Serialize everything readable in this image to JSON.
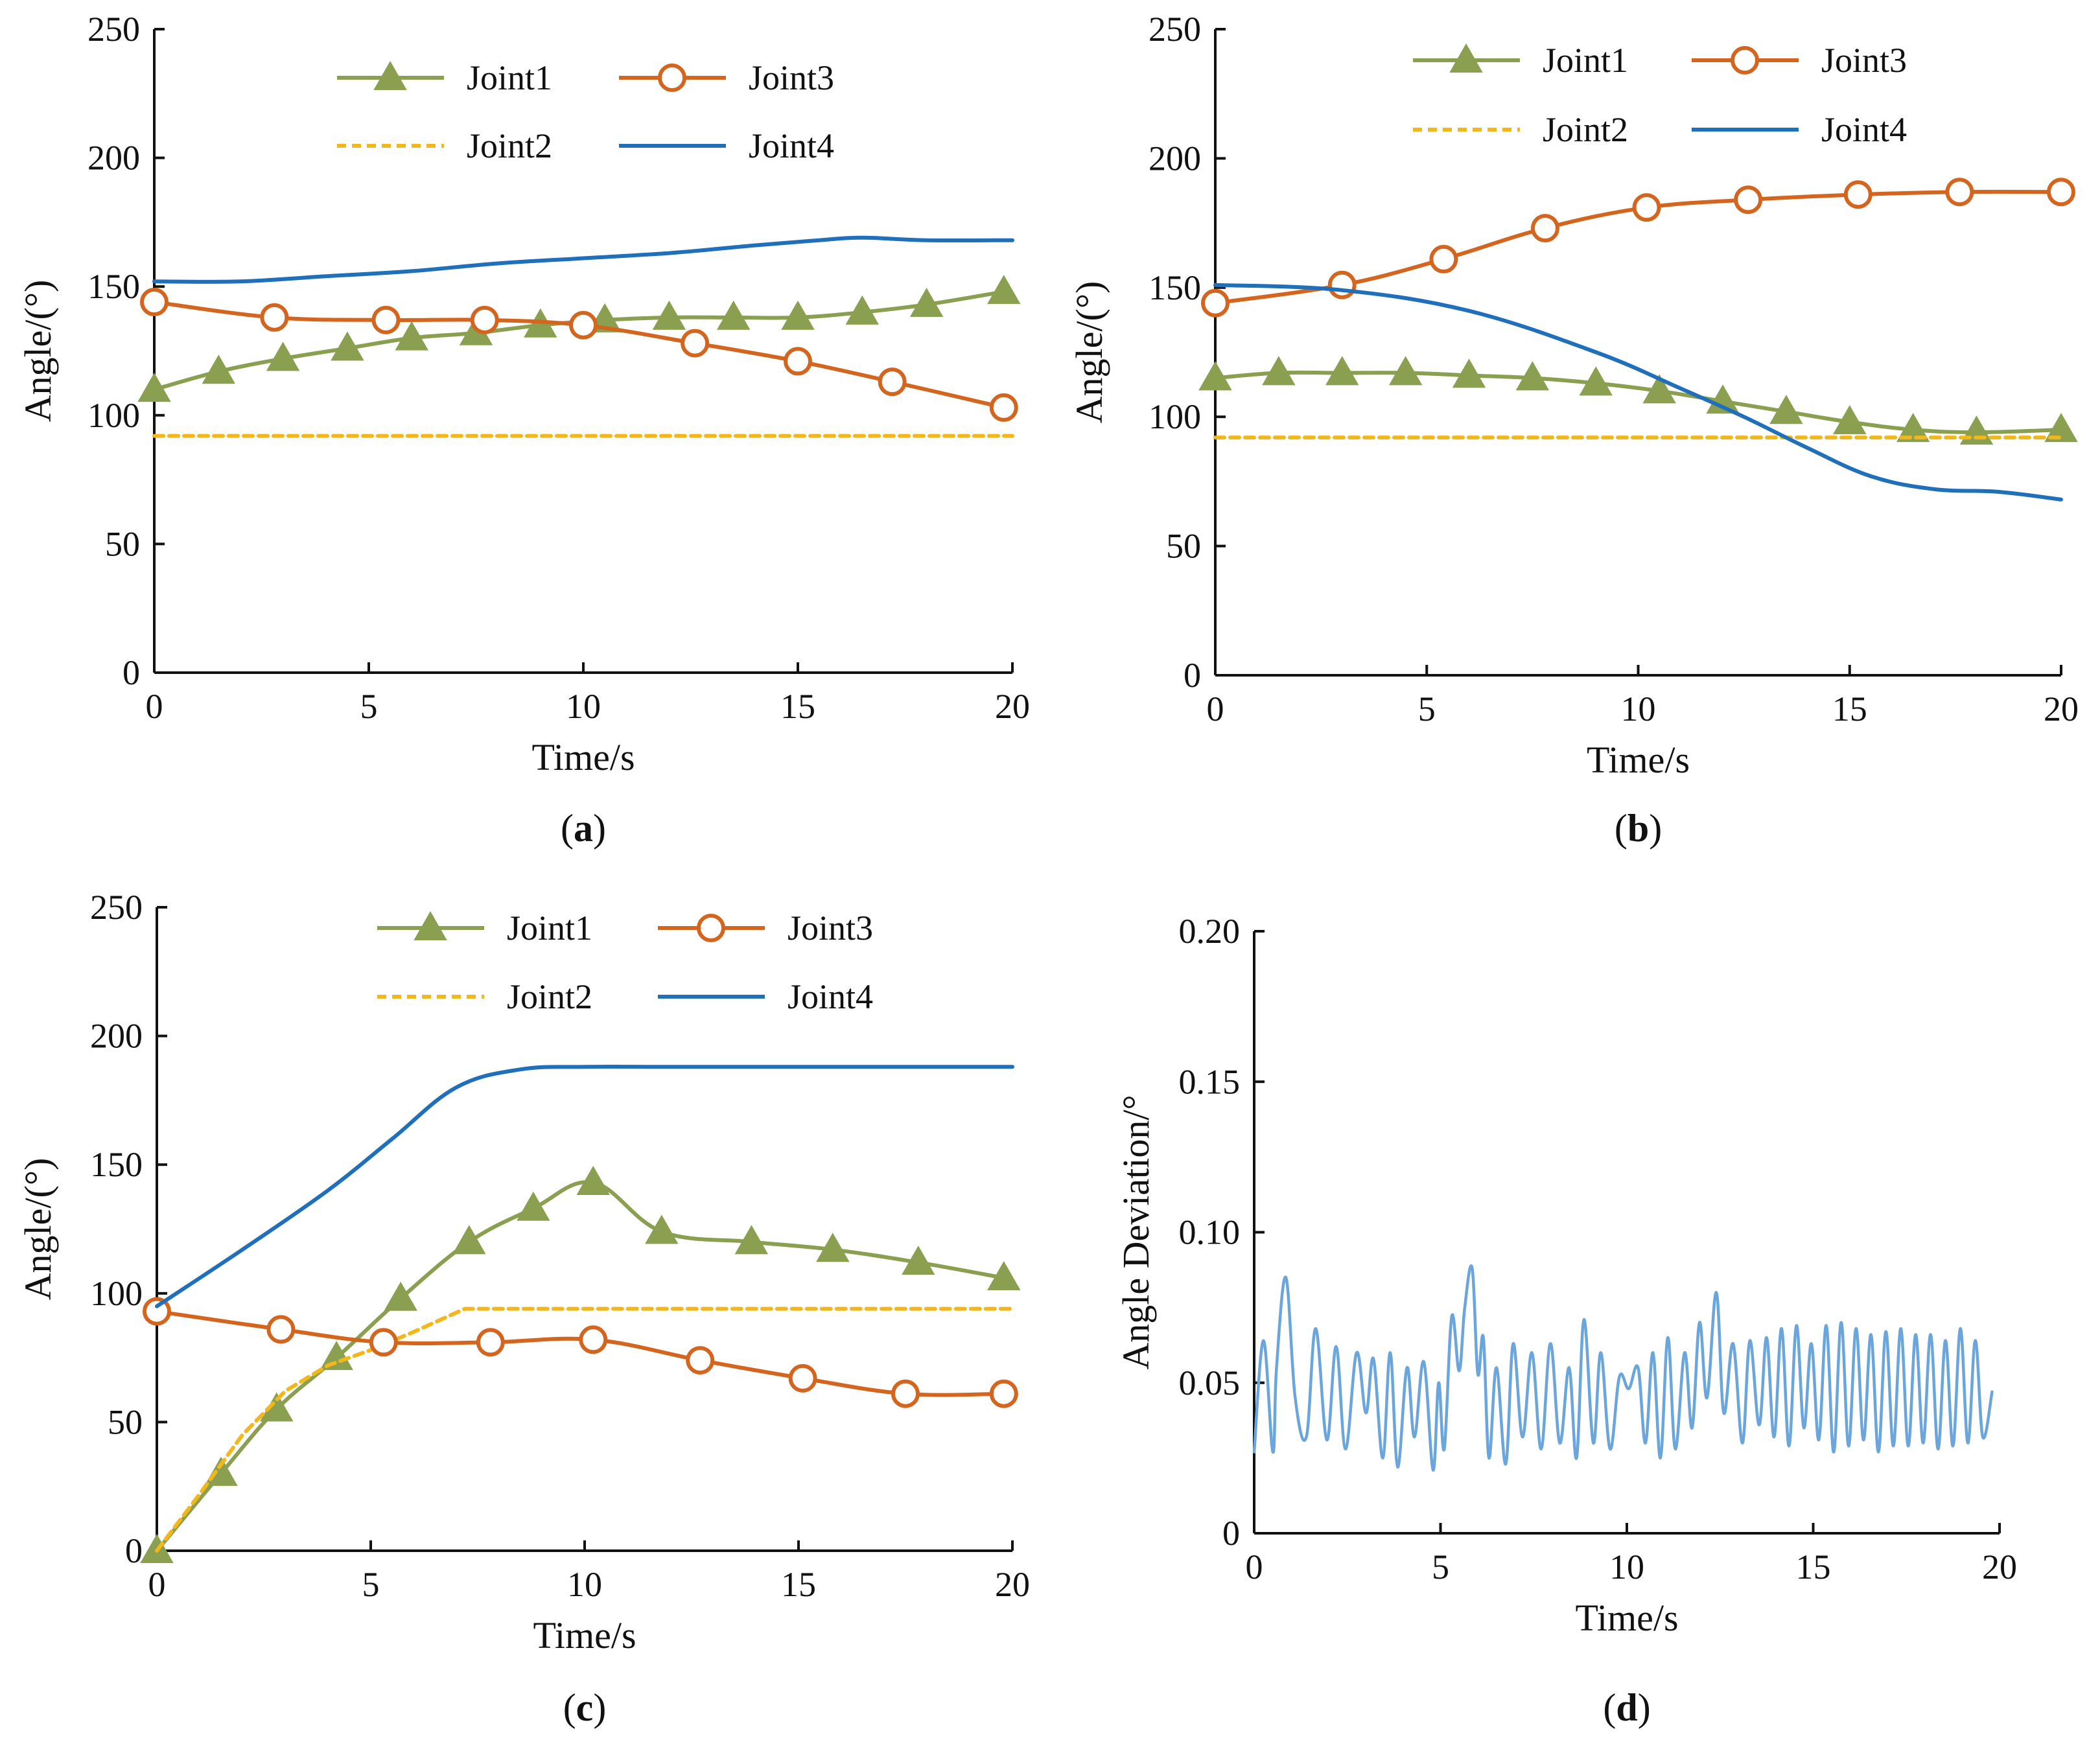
{
  "colors": {
    "joint1": "#8aa050",
    "joint2": "#f2b71d",
    "joint3": "#d4651e",
    "joint4": "#1f6fba",
    "deviation": "#6aa5dc"
  },
  "chart_data": [
    {
      "id": "a",
      "type": "line",
      "panel_label": "a",
      "xlabel": "Time/s",
      "ylabel": "Angle/(°)",
      "xlim": [
        0,
        20
      ],
      "ylim": [
        0,
        250
      ],
      "xticks": [
        "0",
        "5",
        "10",
        "15",
        "20"
      ],
      "yticks": [
        "0",
        "50",
        "100",
        "150",
        "200",
        "250"
      ],
      "legend": [
        "Joint1",
        "Joint3",
        "Joint2",
        "Joint4"
      ],
      "series": [
        {
          "name": "Joint1",
          "marker": "triangle",
          "x": [
            0,
            1.5,
            3,
            4.5,
            6,
            7.5,
            9,
            10.5,
            12,
            13.5,
            15,
            16.5,
            18,
            19.8
          ],
          "values": [
            110,
            117,
            122,
            126,
            130,
            132,
            135,
            137,
            138,
            138,
            138,
            140,
            143,
            148
          ]
        },
        {
          "name": "Joint2",
          "marker": "none",
          "dashed": true,
          "x": [
            0,
            20
          ],
          "values": [
            92,
            92
          ]
        },
        {
          "name": "Joint3",
          "marker": "circle",
          "x": [
            0,
            2.8,
            5.4,
            7.7,
            10,
            12.6,
            15,
            17.2,
            19.8
          ],
          "values": [
            144,
            138,
            137,
            137,
            135,
            128,
            121,
            113,
            103
          ]
        },
        {
          "name": "Joint4",
          "marker": "none",
          "x": [
            0,
            2,
            4,
            6,
            8,
            10,
            12,
            14,
            15.5,
            16.5,
            18,
            20
          ],
          "values": [
            152,
            152,
            154,
            156,
            159,
            161,
            163,
            166,
            168,
            169,
            168,
            168
          ]
        }
      ]
    },
    {
      "id": "b",
      "type": "line",
      "panel_label": "b",
      "xlabel": "Time/s",
      "ylabel": "Angle/(°)",
      "xlim": [
        0,
        20
      ],
      "ylim": [
        0,
        250
      ],
      "xticks": [
        "0",
        "5",
        "10",
        "15",
        "20"
      ],
      "yticks": [
        "0",
        "50",
        "100",
        "150",
        "200",
        "250"
      ],
      "legend": [
        "Joint1",
        "Joint3",
        "Joint2",
        "Joint4"
      ],
      "series": [
        {
          "name": "Joint1",
          "marker": "triangle",
          "x": [
            0,
            1.5,
            3,
            4.5,
            6,
            7.5,
            9,
            10.5,
            12,
            13.5,
            15,
            16.5,
            18,
            20
          ],
          "values": [
            115,
            117,
            117,
            117,
            116,
            115,
            113,
            110,
            106,
            102,
            98,
            95,
            94,
            95
          ]
        },
        {
          "name": "Joint2",
          "marker": "none",
          "dashed": true,
          "x": [
            0,
            20
          ],
          "values": [
            92,
            92
          ]
        },
        {
          "name": "Joint3",
          "marker": "circle",
          "x": [
            0,
            3,
            5.4,
            7.8,
            10.2,
            12.6,
            15.2,
            17.6,
            20
          ],
          "values": [
            144,
            151,
            161,
            173,
            181,
            184,
            186,
            187,
            187
          ]
        },
        {
          "name": "Joint4",
          "marker": "none",
          "x": [
            0,
            3,
            6,
            9,
            11,
            12.5,
            14,
            15.5,
            17,
            18.5,
            20
          ],
          "values": [
            151,
            149,
            141,
            125,
            111,
            100,
            88,
            77,
            72,
            71,
            68
          ]
        }
      ]
    },
    {
      "id": "c",
      "type": "line",
      "panel_label": "c",
      "xlabel": "Time/s",
      "ylabel": "Angle/(°)",
      "xlim": [
        0,
        20
      ],
      "ylim": [
        0,
        250
      ],
      "xticks": [
        "0",
        "5",
        "10",
        "15",
        "20"
      ],
      "yticks": [
        "0",
        "50",
        "100",
        "150",
        "200",
        "250"
      ],
      "legend": [
        "Joint1",
        "Joint3",
        "Joint2",
        "Joint4"
      ],
      "series": [
        {
          "name": "Joint1",
          "marker": "triangle",
          "x": [
            0,
            1.5,
            2.8,
            4.2,
            5.7,
            7.3,
            8.8,
            10.2,
            11.8,
            13.9,
            15.8,
            17.8,
            19.8
          ],
          "values": [
            0,
            30,
            55,
            75,
            98,
            120,
            133,
            143,
            124,
            120,
            117,
            112,
            106
          ]
        },
        {
          "name": "Joint2",
          "marker": "none",
          "dashed": true,
          "x": [
            0,
            1,
            2,
            3,
            4,
            5,
            6,
            7.2,
            20
          ],
          "values": [
            0,
            22,
            45,
            62,
            72,
            78,
            85,
            94,
            94
          ]
        },
        {
          "name": "Joint3",
          "marker": "circle",
          "x": [
            0,
            2.9,
            5.3,
            7.8,
            10.2,
            12.7,
            15.1,
            17.5,
            19.8
          ],
          "values": [
            93,
            86,
            81,
            81,
            82,
            74,
            67,
            61,
            61
          ]
        },
        {
          "name": "Joint4",
          "marker": "none",
          "x": [
            0,
            2,
            4,
            5.5,
            7,
            8.5,
            10,
            12,
            15,
            20
          ],
          "values": [
            95,
            117,
            140,
            160,
            180,
            187,
            188,
            188,
            188,
            188
          ]
        }
      ]
    },
    {
      "id": "d",
      "type": "line",
      "panel_label": "d",
      "xlabel": "Time/s",
      "ylabel": "Angle Deviation/°",
      "xlim": [
        0,
        20
      ],
      "ylim": [
        0,
        0.2
      ],
      "xticks": [
        "0",
        "5",
        "10",
        "15",
        "20"
      ],
      "yticks": [
        "0",
        "0.05",
        "0.10",
        "0.15",
        "0.20"
      ],
      "legend": [],
      "series": [
        {
          "name": "Angle Deviation",
          "marker": "none",
          "x": [
            0,
            0.25,
            0.5,
            0.6,
            0.85,
            1.1,
            1.4,
            1.65,
            1.95,
            2.2,
            2.45,
            2.75,
            3.0,
            3.2,
            3.45,
            3.65,
            3.85,
            4.1,
            4.3,
            4.55,
            4.8,
            4.95,
            5.1,
            5.3,
            5.5,
            5.65,
            5.85,
            6.0,
            6.15,
            6.3,
            6.5,
            6.75,
            6.95,
            7.2,
            7.45,
            7.7,
            7.95,
            8.2,
            8.45,
            8.65,
            8.85,
            9.1,
            9.3,
            9.55,
            9.8,
            10.05,
            10.3,
            10.5,
            10.7,
            10.9,
            11.1,
            11.3,
            11.55,
            11.75,
            11.95,
            12.15,
            12.4,
            12.6,
            12.85,
            13.1,
            13.3,
            13.55,
            13.75,
            13.95,
            14.15,
            14.35,
            14.55,
            14.75,
            14.95,
            15.15,
            15.35,
            15.55,
            15.75,
            15.95,
            16.15,
            16.35,
            16.55,
            16.75,
            16.95,
            17.15,
            17.35,
            17.55,
            17.75,
            17.95,
            18.15,
            18.35,
            18.55,
            18.75,
            18.95,
            19.15,
            19.35,
            19.55,
            19.8
          ],
          "values": [
            0.027,
            0.064,
            0.027,
            0.055,
            0.085,
            0.045,
            0.032,
            0.068,
            0.031,
            0.062,
            0.028,
            0.06,
            0.04,
            0.058,
            0.025,
            0.06,
            0.022,
            0.055,
            0.032,
            0.057,
            0.021,
            0.05,
            0.028,
            0.072,
            0.054,
            0.075,
            0.088,
            0.053,
            0.065,
            0.025,
            0.055,
            0.023,
            0.063,
            0.032,
            0.06,
            0.028,
            0.063,
            0.03,
            0.055,
            0.025,
            0.071,
            0.03,
            0.06,
            0.028,
            0.052,
            0.048,
            0.055,
            0.03,
            0.06,
            0.025,
            0.065,
            0.028,
            0.06,
            0.035,
            0.07,
            0.045,
            0.08,
            0.04,
            0.063,
            0.03,
            0.064,
            0.036,
            0.065,
            0.032,
            0.068,
            0.029,
            0.069,
            0.035,
            0.063,
            0.031,
            0.069,
            0.027,
            0.07,
            0.029,
            0.068,
            0.031,
            0.066,
            0.027,
            0.067,
            0.029,
            0.068,
            0.029,
            0.066,
            0.03,
            0.066,
            0.028,
            0.064,
            0.029,
            0.068,
            0.03,
            0.064,
            0.032,
            0.047
          ]
        }
      ]
    }
  ]
}
